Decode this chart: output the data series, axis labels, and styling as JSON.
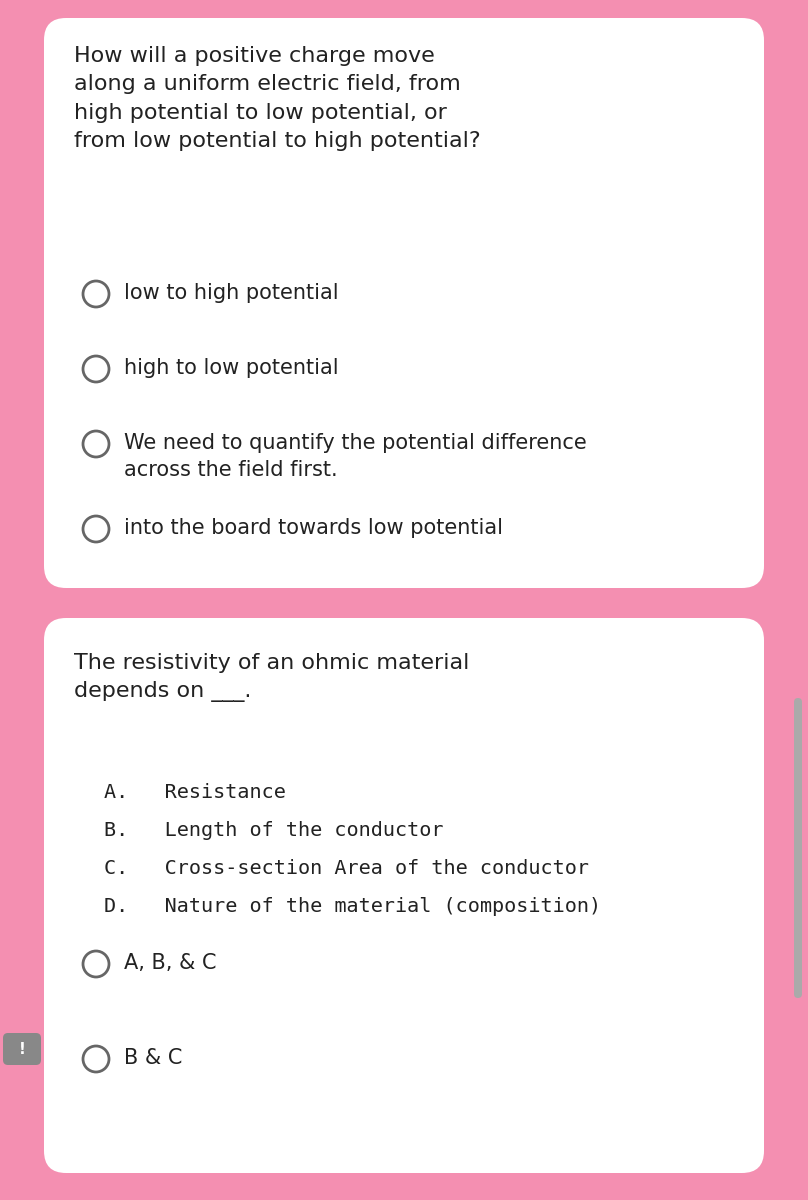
{
  "bg_color": "#f48fb1",
  "card_color": "#ffffff",
  "text_color": "#222222",
  "circle_edge_color": "#666666",
  "fig_width": 8.08,
  "fig_height": 12.0,
  "q1_question": "How will a positive charge move\nalong a uniform electric field, from\nhigh potential to low potential, or\nfrom low potential to high potential?",
  "q1_options": [
    "low to high potential",
    "high to low potential",
    "We need to quantify the potential difference\nacross the field first.",
    "into the board towards low potential"
  ],
  "q2_question": "The resistivity of an ohmic material\ndepends on ___.",
  "q2_abcd": [
    "A.   Resistance",
    "B.   Length of the conductor",
    "C.   Cross-section Area of the conductor",
    "D.   Nature of the material (composition)"
  ],
  "q2_options": [
    "A, B, & C",
    "B & C"
  ],
  "font_size_question": 16,
  "font_size_option": 15,
  "font_size_abcd": 14.5,
  "circle_lw": 2.0,
  "scrollbar_color": "#aaaaaa"
}
